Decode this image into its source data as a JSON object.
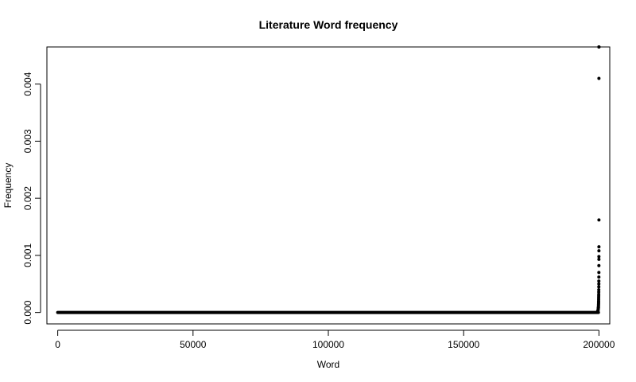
{
  "chart_data": {
    "type": "scatter",
    "title": "Literature Word frequency",
    "xlabel": "Word",
    "ylabel": "Frequency",
    "xlim": [
      -4000,
      204000
    ],
    "ylim": [
      -0.0002,
      0.00465
    ],
    "xticks": [
      0,
      50000,
      100000,
      150000,
      200000
    ],
    "xtick_labels": [
      "0",
      "50000",
      "100000",
      "150000",
      "200000"
    ],
    "yticks": [
      0,
      0.001,
      0.002,
      0.003,
      0.004
    ],
    "ytick_labels": [
      "0.000",
      "0.001",
      "0.002",
      "0.003",
      "0.004"
    ],
    "grid": false,
    "legend": "none",
    "point_color": "#000000",
    "baseline": {
      "y": 0,
      "x_start": 0,
      "x_end": 199800,
      "description_count": 0
    },
    "series": [
      {
        "x": [
          199300,
          199400,
          199500,
          199560,
          199600,
          199640,
          199680,
          199710,
          199740,
          199760,
          199780,
          199800,
          199815,
          199830,
          199845,
          199860,
          199870,
          199880,
          199890,
          199900,
          199910,
          199920,
          199930,
          199940,
          199950,
          199958,
          199965,
          199972,
          199978,
          199983,
          199987,
          199990,
          199993,
          199995,
          199997,
          199998,
          199999,
          200000
        ],
        "y": [
          5e-06,
          1e-05,
          1.5e-05,
          2e-05,
          2.5e-05,
          3e-05,
          4e-05,
          5e-05,
          6e-05,
          7e-05,
          8e-05,
          9e-05,
          0.0001,
          0.00012,
          0.00014,
          0.00016,
          0.00018,
          0.0002,
          0.00023,
          0.00026,
          0.00029,
          0.00032,
          0.00036,
          0.0004,
          0.00045,
          0.0005,
          0.00055,
          0.00062,
          0.0007,
          0.00082,
          0.00093,
          0.00098,
          0.00108,
          0.00115,
          0.00162,
          0.0041,
          0.00465,
          0.00465
        ]
      }
    ]
  }
}
